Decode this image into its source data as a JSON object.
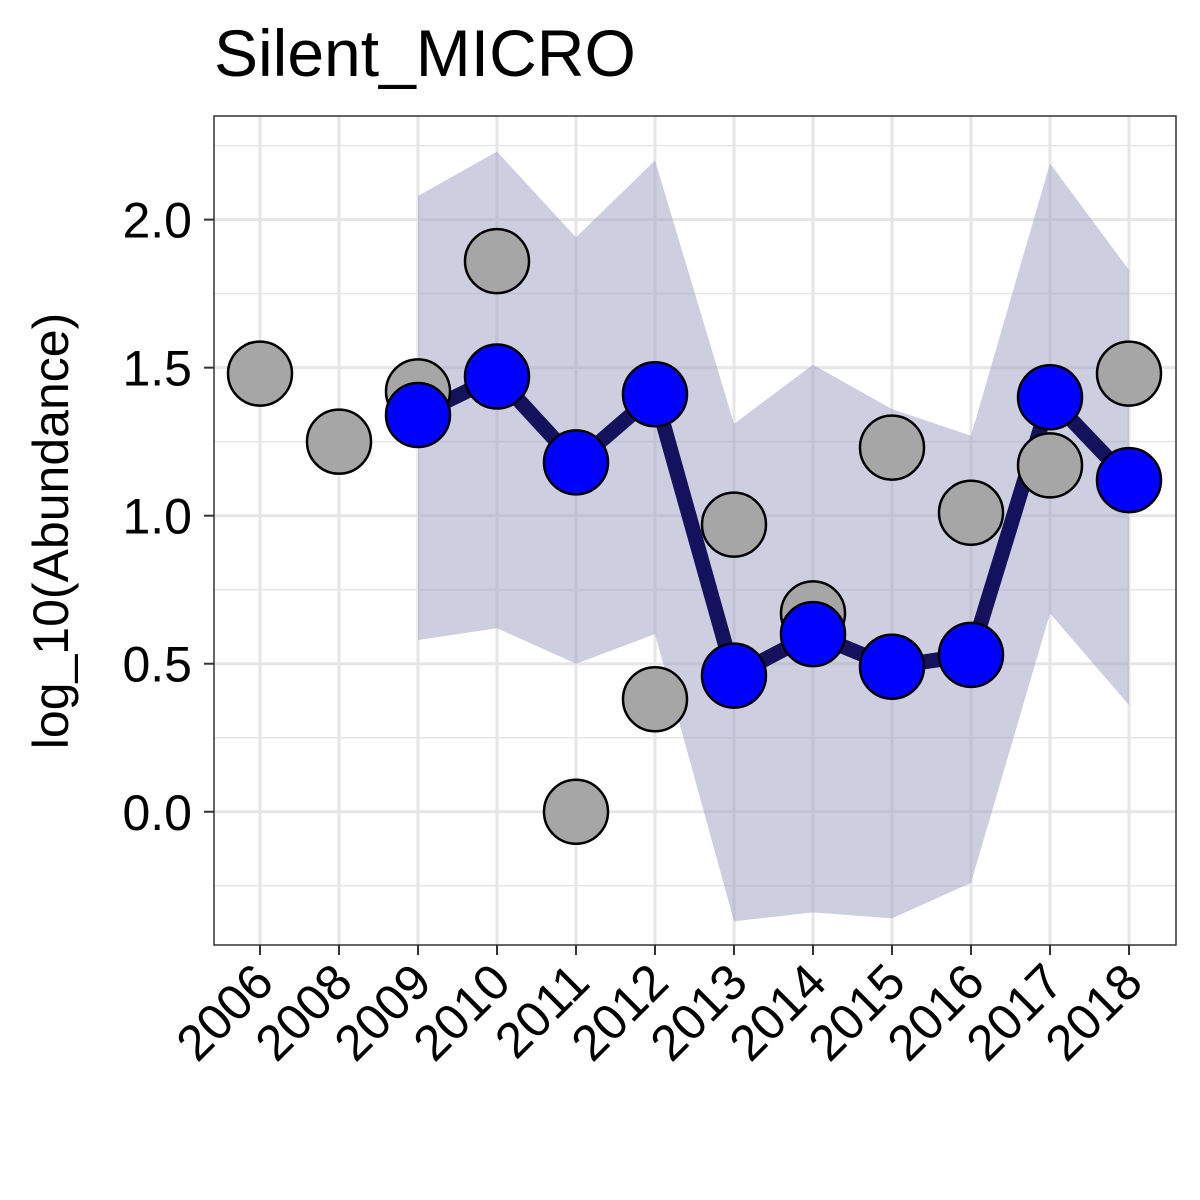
{
  "chart_data": {
    "type": "line",
    "title": "Silent_MICRO",
    "xlabel": "",
    "ylabel": "log_10(Abundance)",
    "categories": [
      "2006",
      "2008",
      "2009",
      "2010",
      "2011",
      "2012",
      "2013",
      "2014",
      "2015",
      "2016",
      "2017",
      "2018"
    ],
    "ylim": [
      -0.45,
      2.35
    ],
    "yticks": [
      "0.0",
      "0.5",
      "1.0",
      "1.5",
      "2.0"
    ],
    "ytick_values": [
      0.0,
      0.5,
      1.0,
      1.5,
      2.0
    ],
    "grid": true,
    "observed": [
      1.48,
      1.25,
      1.42,
      1.86,
      0.0,
      0.38,
      0.97,
      0.67,
      1.23,
      1.01,
      1.17,
      1.48
    ],
    "fitted": [
      null,
      null,
      1.34,
      1.47,
      1.18,
      1.41,
      0.46,
      0.6,
      0.49,
      0.53,
      1.4,
      1.12
    ],
    "ribbon_lower": [
      null,
      null,
      0.58,
      0.62,
      0.5,
      0.6,
      -0.37,
      -0.34,
      -0.36,
      -0.24,
      0.67,
      0.36
    ],
    "ribbon_upper": [
      null,
      null,
      2.08,
      2.23,
      1.94,
      2.2,
      1.31,
      1.51,
      1.36,
      1.27,
      2.19,
      1.83
    ],
    "colors": {
      "observed_fill": "#a6a6a6",
      "fitted_fill": "#0000ff",
      "fitted_line": "#14125c",
      "ribbon": "#9e9ec4",
      "grid": "#e6e6e6",
      "panel_border": "#333333"
    }
  }
}
